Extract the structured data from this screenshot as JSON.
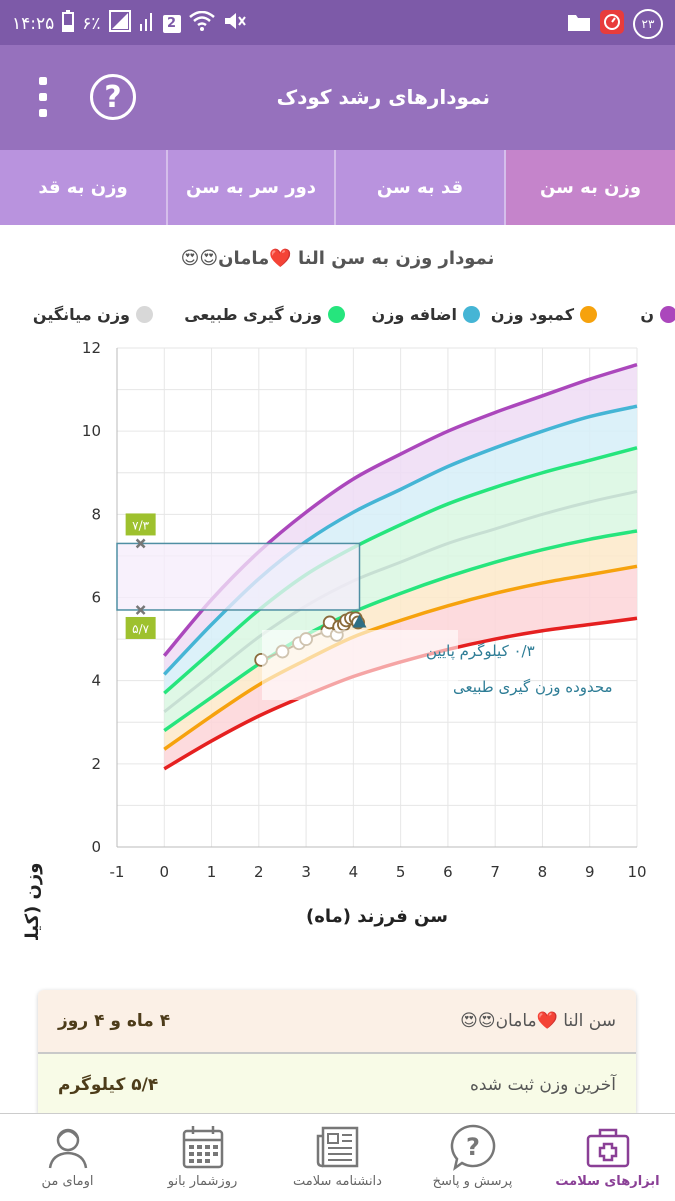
{
  "status_bar": {
    "time": "۱۴:۲۵",
    "battery": "۶٪",
    "sim_badge": "2",
    "notification_count": "۲۳"
  },
  "app_bar": {
    "title": "نمودارهای رشد کودک",
    "help_symbol": "?"
  },
  "tabs": [
    {
      "label": "وزن به سن",
      "active": true
    },
    {
      "label": "قد به سن",
      "active": false
    },
    {
      "label": "دور سر به سن",
      "active": false
    },
    {
      "label": "وزن به قد",
      "active": false
    }
  ],
  "chart_title": "نمودار وزن به سن النا ❤️مامان😍😍",
  "legend": [
    {
      "label": "ن",
      "color": "#ab47bc"
    },
    {
      "label": "کمبود وزن",
      "color": "#f6a20d"
    },
    {
      "label": "اضافه وزن",
      "color": "#45b5d5"
    },
    {
      "label": "وزن گیری طبیعی",
      "color": "#26e57d"
    },
    {
      "label": "وزن میانگین",
      "color": "#d8d8d8"
    }
  ],
  "chart_data": {
    "type": "area",
    "xlabel": "سن فرزند (ماه)",
    "ylabel": "وزن (کیلوگرم)",
    "xlim": [
      -1,
      10
    ],
    "ylim": [
      0,
      12
    ],
    "x_ticks": [
      -1,
      0,
      1,
      2,
      3,
      4,
      5,
      6,
      7,
      8,
      9,
      10
    ],
    "y_ticks": [
      0,
      2,
      4,
      6,
      8,
      10,
      12
    ],
    "grid": true,
    "x": [
      0,
      1,
      2,
      3,
      4,
      5,
      6,
      7,
      8,
      9,
      10
    ],
    "curves": [
      {
        "key": "p_low",
        "color": "#e52020",
        "values": [
          1.88,
          2.55,
          3.15,
          3.65,
          4.1,
          4.45,
          4.75,
          5.0,
          5.2,
          5.35,
          5.5
        ]
      },
      {
        "key": "p_underweight",
        "color": "#f6a20d",
        "values": [
          2.35,
          3.15,
          3.9,
          4.5,
          5.05,
          5.45,
          5.8,
          6.1,
          6.35,
          6.55,
          6.75
        ]
      },
      {
        "key": "p_normal_low",
        "color": "#26e57d",
        "values": [
          2.8,
          3.6,
          4.4,
          5.1,
          5.65,
          6.1,
          6.5,
          6.85,
          7.15,
          7.4,
          7.6
        ]
      },
      {
        "key": "p_median",
        "color": "#c7dfd3",
        "values": [
          3.25,
          4.15,
          5.05,
          5.8,
          6.4,
          6.85,
          7.3,
          7.65,
          8.0,
          8.3,
          8.55
        ]
      },
      {
        "key": "p_normal_high",
        "color": "#26e57d",
        "values": [
          3.7,
          4.7,
          5.7,
          6.55,
          7.2,
          7.75,
          8.25,
          8.65,
          9.0,
          9.3,
          9.6
        ]
      },
      {
        "key": "p_overweight",
        "color": "#45b5d5",
        "values": [
          4.15,
          5.35,
          6.45,
          7.35,
          8.05,
          8.6,
          9.15,
          9.6,
          10.0,
          10.35,
          10.6
        ]
      },
      {
        "key": "p_high",
        "color": "#ab47bc",
        "values": [
          4.6,
          5.95,
          7.1,
          8.05,
          8.85,
          9.45,
          10.0,
          10.45,
          10.85,
          11.25,
          11.6
        ]
      }
    ],
    "measurements": [
      {
        "x": 2.05,
        "y": 4.5
      },
      {
        "x": 2.5,
        "y": 4.7
      },
      {
        "x": 2.85,
        "y": 4.9
      },
      {
        "x": 3.0,
        "y": 5.0
      },
      {
        "x": 3.45,
        "y": 5.2
      },
      {
        "x": 3.5,
        "y": 5.4
      },
      {
        "x": 3.65,
        "y": 5.1
      },
      {
        "x": 3.7,
        "y": 5.3
      },
      {
        "x": 3.8,
        "y": 5.35
      },
      {
        "x": 3.85,
        "y": 5.45
      },
      {
        "x": 3.95,
        "y": 5.5
      },
      {
        "x": 4.05,
        "y": 5.5
      },
      {
        "x": 4.1,
        "y": 5.4
      }
    ],
    "latest_point": {
      "x": 4.13,
      "y": 5.4
    },
    "normal_range": {
      "min": 5.7,
      "max": 7.3,
      "x_end": 4.13,
      "min_label": "۵/۷",
      "max_label": "۷/۳"
    },
    "annotation": {
      "line1": "۰/۳ کیلوگرم پایین",
      "line2": "محدوده وزن گیری طبیعی"
    }
  },
  "info": {
    "age_label": "سن النا ❤️مامان😍😍",
    "age_value": "۴ ماه و ۴ روز",
    "weight_label": "آخرین وزن ثبت شده",
    "weight_value": "۵/۴ کیلوگرم"
  },
  "bottom_nav": [
    {
      "label": "ابزارهای سلامت",
      "icon": "medical-kit-icon",
      "active": true
    },
    {
      "label": "پرسش و پاسخ",
      "icon": "question-bubble-icon",
      "active": false
    },
    {
      "label": "دانشنامه سلامت",
      "icon": "newspaper-icon",
      "active": false
    },
    {
      "label": "روزشمار بانو",
      "icon": "calendar-icon",
      "active": false
    },
    {
      "label": "اومای من",
      "icon": "user-profile-icon",
      "active": false
    }
  ]
}
